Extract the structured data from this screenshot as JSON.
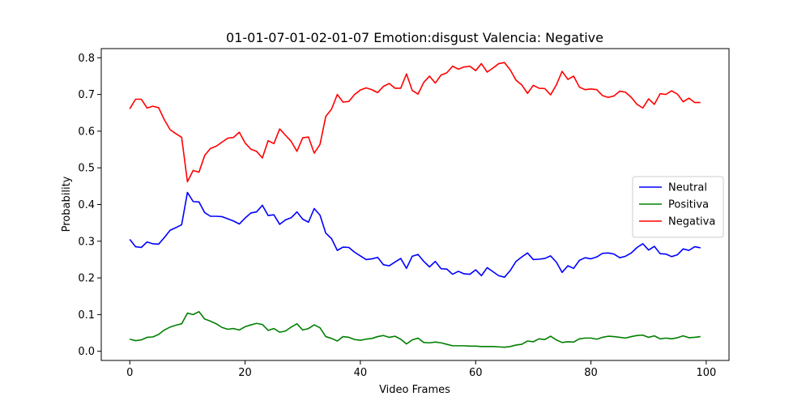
{
  "chart_data": {
    "type": "line",
    "title": "01-01-07-01-02-01-07 Emotion:disgust Valencia: Negative",
    "xlabel": "Video Frames",
    "ylabel": "Probability",
    "xlim": [
      -4.95,
      103.95
    ],
    "ylim": [
      -0.025,
      0.825
    ],
    "xticks": [
      0,
      20,
      40,
      60,
      80,
      100
    ],
    "yticks": [
      0.0,
      0.1,
      0.2,
      0.3,
      0.4,
      0.5,
      0.6,
      0.7,
      0.8
    ],
    "grid": false,
    "legend_position": "center-right",
    "series": [
      {
        "name": "Neutral",
        "color": "#0000ff",
        "values": [
          0.305,
          0.285,
          0.283,
          0.298,
          0.293,
          0.292,
          0.31,
          0.33,
          0.337,
          0.345,
          0.433,
          0.408,
          0.407,
          0.378,
          0.368,
          0.368,
          0.367,
          0.361,
          0.355,
          0.347,
          0.363,
          0.377,
          0.38,
          0.398,
          0.37,
          0.372,
          0.346,
          0.358,
          0.364,
          0.38,
          0.36,
          0.352,
          0.389,
          0.371,
          0.322,
          0.307,
          0.275,
          0.284,
          0.283,
          0.27,
          0.26,
          0.25,
          0.252,
          0.256,
          0.236,
          0.233,
          0.243,
          0.253,
          0.226,
          0.259,
          0.264,
          0.245,
          0.23,
          0.245,
          0.225,
          0.224,
          0.21,
          0.218,
          0.211,
          0.21,
          0.222,
          0.206,
          0.228,
          0.217,
          0.206,
          0.202,
          0.22,
          0.245,
          0.257,
          0.268,
          0.25,
          0.251,
          0.253,
          0.26,
          0.243,
          0.215,
          0.233,
          0.226,
          0.248,
          0.255,
          0.252,
          0.257,
          0.267,
          0.268,
          0.265,
          0.255,
          0.259,
          0.268,
          0.283,
          0.293,
          0.276,
          0.286,
          0.266,
          0.265,
          0.258,
          0.263,
          0.279,
          0.275,
          0.285,
          0.282
        ]
      },
      {
        "name": "Positiva",
        "color": "#008000",
        "values": [
          0.033,
          0.029,
          0.031,
          0.038,
          0.039,
          0.046,
          0.058,
          0.066,
          0.071,
          0.075,
          0.104,
          0.1,
          0.108,
          0.088,
          0.082,
          0.075,
          0.065,
          0.06,
          0.062,
          0.058,
          0.067,
          0.072,
          0.076,
          0.073,
          0.057,
          0.062,
          0.052,
          0.055,
          0.066,
          0.075,
          0.058,
          0.062,
          0.072,
          0.064,
          0.04,
          0.035,
          0.028,
          0.04,
          0.038,
          0.032,
          0.03,
          0.033,
          0.035,
          0.04,
          0.043,
          0.038,
          0.041,
          0.033,
          0.02,
          0.031,
          0.036,
          0.024,
          0.023,
          0.025,
          0.023,
          0.019,
          0.015,
          0.015,
          0.015,
          0.014,
          0.014,
          0.013,
          0.013,
          0.013,
          0.012,
          0.011,
          0.013,
          0.017,
          0.019,
          0.028,
          0.026,
          0.034,
          0.032,
          0.041,
          0.031,
          0.024,
          0.026,
          0.025,
          0.034,
          0.036,
          0.036,
          0.033,
          0.038,
          0.041,
          0.04,
          0.038,
          0.036,
          0.04,
          0.043,
          0.044,
          0.038,
          0.042,
          0.034,
          0.036,
          0.034,
          0.037,
          0.042,
          0.037,
          0.038,
          0.04
        ]
      },
      {
        "name": "Negativa",
        "color": "#ff0000",
        "values": [
          0.661,
          0.687,
          0.687,
          0.663,
          0.668,
          0.664,
          0.631,
          0.604,
          0.593,
          0.583,
          0.462,
          0.493,
          0.488,
          0.534,
          0.553,
          0.559,
          0.57,
          0.581,
          0.583,
          0.597,
          0.568,
          0.551,
          0.545,
          0.527,
          0.574,
          0.566,
          0.606,
          0.589,
          0.572,
          0.545,
          0.582,
          0.584,
          0.54,
          0.564,
          0.64,
          0.66,
          0.7,
          0.679,
          0.681,
          0.7,
          0.712,
          0.718,
          0.713,
          0.705,
          0.722,
          0.73,
          0.717,
          0.717,
          0.756,
          0.711,
          0.701,
          0.733,
          0.75,
          0.731,
          0.753,
          0.759,
          0.777,
          0.769,
          0.775,
          0.777,
          0.765,
          0.784,
          0.761,
          0.772,
          0.784,
          0.787,
          0.767,
          0.739,
          0.726,
          0.703,
          0.725,
          0.717,
          0.716,
          0.699,
          0.726,
          0.763,
          0.741,
          0.75,
          0.72,
          0.713,
          0.715,
          0.713,
          0.697,
          0.692,
          0.696,
          0.709,
          0.706,
          0.692,
          0.673,
          0.663,
          0.688,
          0.673,
          0.702,
          0.7,
          0.71,
          0.701,
          0.68,
          0.69,
          0.678,
          0.678
        ]
      }
    ]
  }
}
